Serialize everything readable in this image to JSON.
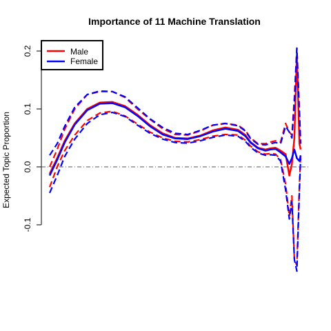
{
  "chart_data": {
    "type": "line",
    "title": "Importance of 11 Machine Translation",
    "xlabel": "",
    "ylabel": "Expected Topic Proportion",
    "xlim": [
      0,
      1
    ],
    "ylim": [
      -0.1,
      0.2
    ],
    "yticks": [
      -0.1,
      0.0,
      0.1,
      0.2
    ],
    "ytick_labels": [
      "-0.1",
      "0.0",
      "0.1",
      "0.2"
    ],
    "reference_line": 0.0,
    "legend_position": "top-left",
    "legend": [
      {
        "label": "Male",
        "color": "#ff0000"
      },
      {
        "label": "Female",
        "color": "#0000ff"
      }
    ],
    "x": [
      0.0,
      0.03,
      0.06,
      0.1,
      0.15,
      0.2,
      0.25,
      0.3,
      0.35,
      0.4,
      0.45,
      0.5,
      0.55,
      0.6,
      0.65,
      0.7,
      0.75,
      0.78,
      0.8,
      0.83,
      0.86,
      0.88,
      0.9,
      0.92,
      0.94,
      0.955,
      0.965,
      0.975,
      0.985,
      0.995,
      1.0
    ],
    "series": [
      {
        "name": "Male",
        "color": "#ff0000",
        "estimate": [
          -0.012,
          0.015,
          0.045,
          0.075,
          0.1,
          0.111,
          0.112,
          0.105,
          0.09,
          0.072,
          0.058,
          0.05,
          0.049,
          0.054,
          0.063,
          0.068,
          0.064,
          0.055,
          0.043,
          0.033,
          0.03,
          0.032,
          0.033,
          0.028,
          0.022,
          -0.015,
          0.005,
          0.05,
          0.195,
          0.04,
          0.03
        ],
        "upper": [
          0.0,
          0.03,
          0.065,
          0.1,
          0.125,
          0.13,
          0.13,
          0.12,
          0.1,
          0.082,
          0.066,
          0.056,
          0.055,
          0.062,
          0.072,
          0.075,
          0.072,
          0.063,
          0.05,
          0.04,
          0.04,
          0.043,
          0.045,
          0.043,
          0.075,
          0.06,
          0.055,
          0.12,
          0.205,
          0.1,
          0.04
        ],
        "lower": [
          -0.035,
          0.0,
          0.028,
          0.055,
          0.08,
          0.093,
          0.096,
          0.088,
          0.074,
          0.06,
          0.05,
          0.044,
          0.043,
          0.047,
          0.053,
          0.056,
          0.055,
          0.046,
          0.036,
          0.026,
          0.022,
          0.023,
          0.022,
          0.013,
          -0.03,
          -0.085,
          -0.05,
          -0.16,
          -0.17,
          -0.03,
          0.02
        ]
      },
      {
        "name": "Female",
        "color": "#0000ff",
        "estimate": [
          -0.015,
          0.012,
          0.042,
          0.073,
          0.098,
          0.109,
          0.11,
          0.103,
          0.088,
          0.07,
          0.056,
          0.049,
          0.048,
          0.053,
          0.061,
          0.066,
          0.062,
          0.053,
          0.042,
          0.032,
          0.028,
          0.03,
          0.031,
          0.025,
          0.018,
          0.005,
          0.015,
          0.03,
          0.015,
          0.01,
          0.02
        ],
        "upper": [
          0.02,
          0.04,
          0.07,
          0.103,
          0.125,
          0.131,
          0.13,
          0.121,
          0.102,
          0.083,
          0.068,
          0.058,
          0.056,
          0.063,
          0.072,
          0.075,
          0.071,
          0.062,
          0.049,
          0.039,
          0.038,
          0.04,
          0.042,
          0.04,
          0.07,
          0.06,
          0.05,
          0.11,
          0.205,
          0.09,
          0.04
        ],
        "lower": [
          -0.045,
          -0.015,
          0.018,
          0.048,
          0.075,
          0.09,
          0.094,
          0.087,
          0.072,
          0.058,
          0.048,
          0.042,
          0.041,
          0.045,
          0.051,
          0.055,
          0.053,
          0.044,
          0.034,
          0.024,
          0.02,
          0.021,
          0.02,
          0.01,
          -0.04,
          -0.09,
          -0.06,
          -0.16,
          -0.18,
          -0.04,
          0.015
        ]
      }
    ]
  }
}
